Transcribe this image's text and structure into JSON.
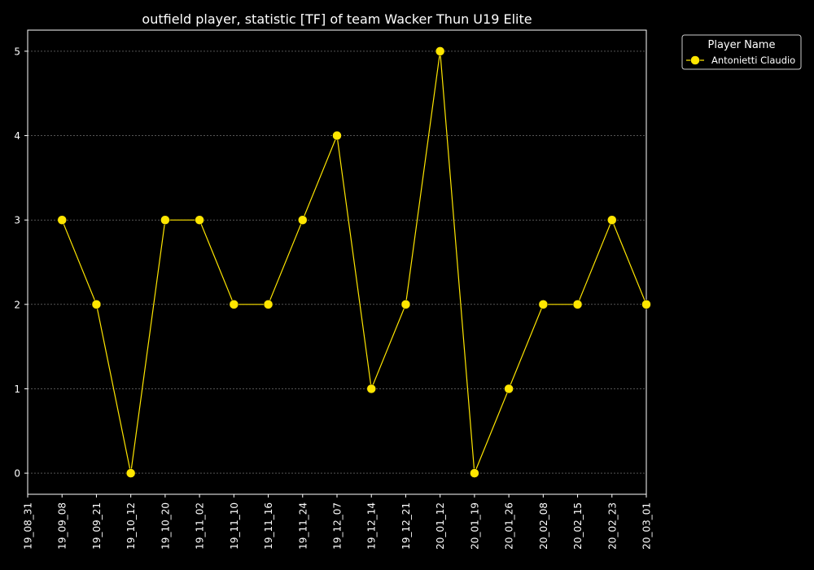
{
  "chart_data": {
    "type": "line",
    "title": "outfield player, statistic [TF] of team Wacker Thun U19 Elite",
    "xlabel": "",
    "ylabel": "",
    "x": [
      "19_08_31",
      "19_09_08",
      "19_09_21",
      "19_10_12",
      "19_10_20",
      "19_11_02",
      "19_11_10",
      "19_11_16",
      "19_11_24",
      "19_12_07",
      "19_12_14",
      "19_12_21",
      "20_01_12",
      "20_01_19",
      "20_01_26",
      "20_02_08",
      "20_02_15",
      "20_02_23",
      "20_03_01"
    ],
    "series": [
      {
        "name": "Antonietti Claudio",
        "color": "#ffe600",
        "values": [
          null,
          3,
          2,
          0,
          3,
          3,
          2,
          2,
          3,
          4,
          1,
          2,
          5,
          0,
          1,
          2,
          2,
          3,
          2
        ]
      }
    ],
    "ylim": [
      -0.25,
      5.25
    ],
    "yticks": [
      0,
      1,
      2,
      3,
      4,
      5
    ],
    "grid": true,
    "legend": {
      "title": "Player Name",
      "placement": "outside-top-right"
    },
    "colors": {
      "background": "#000000",
      "axis": "#ffffff",
      "grid": "#888888",
      "text": "#ffffff"
    }
  }
}
